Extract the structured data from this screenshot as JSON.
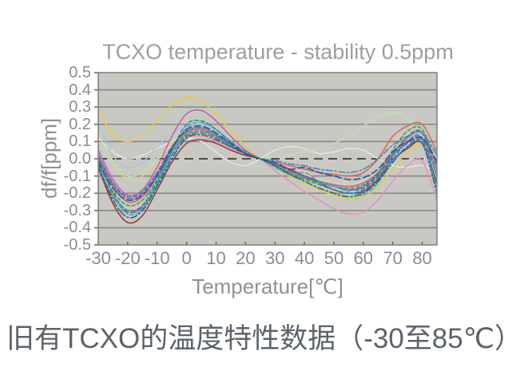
{
  "chart": {
    "title": "TCXO temperature - stability 0.5ppm"
  },
  "caption": {
    "text": "旧有TCXO的温度特性数据（-30至85℃）"
  },
  "chart_data": {
    "type": "line",
    "title": "TCXO temperature - stability 0.5ppm",
    "xlabel": "Temperature[℃]",
    "ylabel": "df/f[ppm]",
    "xlim": [
      -30,
      85
    ],
    "ylim": [
      -0.5,
      0.5
    ],
    "x_ticks": [
      -30,
      -20,
      -10,
      0,
      10,
      20,
      30,
      40,
      50,
      60,
      70,
      80
    ],
    "x_tick_labels": [
      "-30",
      "-20",
      "-10",
      "0",
      "10",
      "20",
      "30",
      "40",
      "50",
      "60",
      "70",
      "80"
    ],
    "y_ticks": [
      0.5,
      0.4,
      0.3,
      0.2,
      0.1,
      0.0,
      -0.1,
      -0.2,
      -0.3,
      -0.4,
      -0.5
    ],
    "y_tick_labels": [
      "0.5",
      "0.4",
      "0.3",
      "0.2",
      "0.1",
      "0.0",
      "-0.1",
      "-0.2",
      "-0.3",
      "-0.4",
      "-0.5"
    ],
    "grid": "horizontal",
    "legend": "none",
    "style": {
      "plot_bg": "#c9c9c4",
      "grid_color": "#8a8a85",
      "zero_line_color": "#4d4d49",
      "border_color": "#7e7e79",
      "tick_color": "#64645f"
    },
    "x": [
      -30,
      -25,
      -20,
      -15,
      -10,
      -5,
      0,
      5,
      10,
      15,
      20,
      25,
      30,
      35,
      40,
      45,
      50,
      55,
      60,
      65,
      70,
      75,
      80,
      85
    ],
    "series": [
      {
        "name": "pale-white",
        "color": "#e6e8dc",
        "dash": "",
        "width": 1.4,
        "values": [
          0.12,
          0.04,
          0.0,
          0.02,
          0.06,
          0.1,
          0.12,
          0.1,
          0.04,
          -0.02,
          -0.04,
          0.0,
          0.05,
          0.07,
          0.06,
          0.03,
          0.04,
          0.06,
          0.05,
          0.0,
          -0.04,
          -0.05,
          -0.04,
          -0.08
        ]
      },
      {
        "name": "mint-green",
        "color": "#bce0b4",
        "dash": "",
        "width": 1.4,
        "values": [
          0.1,
          -0.04,
          -0.1,
          -0.08,
          0.0,
          0.08,
          0.13,
          0.14,
          0.11,
          0.07,
          0.03,
          0.0,
          0.01,
          0.02,
          0.04,
          0.06,
          0.09,
          0.13,
          0.19,
          0.24,
          0.27,
          0.24,
          0.12,
          -0.02
        ]
      },
      {
        "name": "khaki",
        "color": "#ddd39a",
        "dash": "",
        "width": 1.5,
        "values": [
          0.14,
          -0.02,
          -0.12,
          -0.1,
          -0.01,
          0.08,
          0.14,
          0.15,
          0.12,
          0.08,
          0.03,
          0.0,
          -0.03,
          -0.06,
          -0.09,
          -0.12,
          -0.14,
          -0.15,
          -0.13,
          -0.07,
          0.03,
          0.08,
          0.1,
          -0.05
        ]
      },
      {
        "name": "pale-blue",
        "color": "#a9c6df",
        "dash": "",
        "width": 1.5,
        "values": [
          0.2,
          0.02,
          -0.05,
          -0.02,
          0.07,
          0.15,
          0.19,
          0.2,
          0.16,
          0.1,
          0.04,
          0.0,
          -0.02,
          -0.04,
          -0.05,
          -0.07,
          -0.09,
          -0.11,
          -0.1,
          -0.05,
          0.03,
          0.08,
          0.11,
          0.0
        ]
      },
      {
        "name": "yellow",
        "color": "#e3c94f",
        "dash": "",
        "width": 1.7,
        "values": [
          0.28,
          0.14,
          0.1,
          0.14,
          0.22,
          0.31,
          0.36,
          0.33,
          0.26,
          0.16,
          0.07,
          0.0,
          -0.05,
          -0.1,
          -0.14,
          -0.18,
          -0.21,
          -0.23,
          -0.22,
          -0.16,
          -0.06,
          0.04,
          0.08,
          -0.12
        ]
      },
      {
        "name": "light-pink",
        "color": "#e38fc3",
        "dash": "",
        "width": 1.5,
        "values": [
          0.03,
          -0.14,
          -0.23,
          -0.21,
          -0.1,
          0.04,
          0.12,
          0.13,
          0.1,
          0.06,
          0.02,
          0.0,
          -0.07,
          -0.13,
          -0.19,
          -0.24,
          -0.29,
          -0.32,
          -0.31,
          -0.24,
          -0.13,
          -0.04,
          -0.01,
          -0.24
        ]
      },
      {
        "name": "magenta",
        "color": "#c95fa8",
        "dash": "",
        "width": 1.6,
        "values": [
          0.05,
          -0.12,
          -0.21,
          -0.18,
          -0.05,
          0.13,
          0.26,
          0.28,
          0.22,
          0.13,
          0.05,
          0.0,
          -0.04,
          -0.08,
          -0.11,
          -0.13,
          -0.15,
          -0.16,
          -0.14,
          -0.08,
          0.03,
          0.12,
          0.15,
          -0.06
        ]
      },
      {
        "name": "orange-red",
        "color": "#d96a4a",
        "dash": "",
        "width": 1.6,
        "values": [
          0.0,
          -0.16,
          -0.25,
          -0.22,
          -0.1,
          0.05,
          0.15,
          0.17,
          0.13,
          0.08,
          0.03,
          0.0,
          -0.02,
          -0.04,
          -0.06,
          -0.08,
          -0.09,
          -0.1,
          -0.08,
          0.0,
          0.13,
          0.19,
          0.2,
          0.04
        ]
      },
      {
        "name": "maroon",
        "color": "#9e3a3a",
        "dash": "",
        "width": 1.6,
        "values": [
          -0.05,
          -0.26,
          -0.37,
          -0.33,
          -0.18,
          -0.02,
          0.09,
          0.11,
          0.09,
          0.05,
          0.02,
          0.0,
          -0.03,
          -0.06,
          -0.1,
          -0.14,
          -0.18,
          -0.2,
          -0.19,
          -0.12,
          -0.01,
          0.06,
          0.09,
          -0.14
        ]
      },
      {
        "name": "green",
        "color": "#3ba05a",
        "dash": "4 3",
        "width": 1.6,
        "values": [
          -0.03,
          -0.19,
          -0.27,
          -0.24,
          -0.12,
          0.04,
          0.14,
          0.16,
          0.13,
          0.08,
          0.03,
          0.0,
          -0.04,
          -0.08,
          -0.11,
          -0.14,
          -0.16,
          -0.17,
          -0.15,
          -0.08,
          0.05,
          0.16,
          0.17,
          -0.04
        ]
      },
      {
        "name": "steel-blue",
        "color": "#5b7fb5",
        "dash": "8 3 2 3",
        "width": 1.6,
        "values": [
          0.01,
          -0.15,
          -0.23,
          -0.2,
          -0.09,
          0.06,
          0.16,
          0.18,
          0.14,
          0.09,
          0.04,
          0.0,
          -0.01,
          -0.03,
          -0.04,
          -0.06,
          -0.07,
          -0.08,
          -0.06,
          0.0,
          0.08,
          0.13,
          0.15,
          0.02
        ]
      },
      {
        "name": "blue",
        "color": "#4a6fc0",
        "dash": "5 3",
        "width": 1.6,
        "values": [
          0.02,
          -0.14,
          -0.22,
          -0.19,
          -0.08,
          0.07,
          0.16,
          0.18,
          0.14,
          0.08,
          0.03,
          0.0,
          -0.03,
          -0.07,
          -0.1,
          -0.13,
          -0.16,
          -0.18,
          -0.17,
          -0.1,
          0.0,
          0.1,
          0.12,
          -0.16
        ]
      },
      {
        "name": "purple",
        "color": "#7a5aa8",
        "dash": "7 3",
        "width": 1.6,
        "values": [
          -0.06,
          -0.22,
          -0.31,
          -0.28,
          -0.15,
          0.02,
          0.13,
          0.15,
          0.12,
          0.07,
          0.03,
          0.0,
          -0.03,
          -0.07,
          -0.1,
          -0.13,
          -0.16,
          -0.18,
          -0.16,
          -0.09,
          0.02,
          0.09,
          0.11,
          -0.09
        ]
      },
      {
        "name": "cyan",
        "color": "#49aec6",
        "dash": "5 3",
        "width": 1.6,
        "values": [
          -0.01,
          -0.21,
          -0.32,
          -0.29,
          -0.14,
          0.03,
          0.18,
          0.21,
          0.17,
          0.1,
          0.04,
          0.0,
          -0.05,
          -0.09,
          -0.08,
          -0.13,
          -0.16,
          -0.19,
          -0.21,
          -0.14,
          -0.01,
          0.07,
          0.1,
          -0.18
        ]
      },
      {
        "name": "teal",
        "color": "#2e9490",
        "dash": "5 3",
        "width": 1.6,
        "values": [
          0.0,
          -0.2,
          -0.3,
          -0.27,
          -0.13,
          0.05,
          0.2,
          0.22,
          0.17,
          0.1,
          0.04,
          0.0,
          -0.04,
          -0.09,
          -0.12,
          -0.15,
          -0.18,
          -0.2,
          -0.18,
          -0.11,
          0.02,
          0.13,
          0.15,
          -0.1
        ]
      },
      {
        "name": "dark-teal",
        "color": "#1f6f7a",
        "dash": "8 3 2 3",
        "width": 1.6,
        "values": [
          -0.04,
          -0.24,
          -0.34,
          -0.3,
          -0.16,
          0.0,
          0.12,
          0.14,
          0.11,
          0.07,
          0.03,
          0.0,
          -0.04,
          -0.09,
          -0.13,
          -0.17,
          -0.2,
          -0.22,
          -0.2,
          -0.13,
          -0.02,
          0.07,
          0.09,
          -0.2
        ]
      },
      {
        "name": "navy",
        "color": "#33518e",
        "dash": "8 4",
        "width": 1.6,
        "values": [
          -0.02,
          -0.17,
          -0.24,
          -0.21,
          -0.1,
          0.06,
          0.17,
          0.19,
          0.15,
          0.09,
          0.03,
          0.0,
          -0.02,
          -0.06,
          -0.05,
          -0.08,
          -0.1,
          -0.12,
          -0.11,
          -0.06,
          0.04,
          0.1,
          0.12,
          -0.02
        ]
      }
    ]
  }
}
